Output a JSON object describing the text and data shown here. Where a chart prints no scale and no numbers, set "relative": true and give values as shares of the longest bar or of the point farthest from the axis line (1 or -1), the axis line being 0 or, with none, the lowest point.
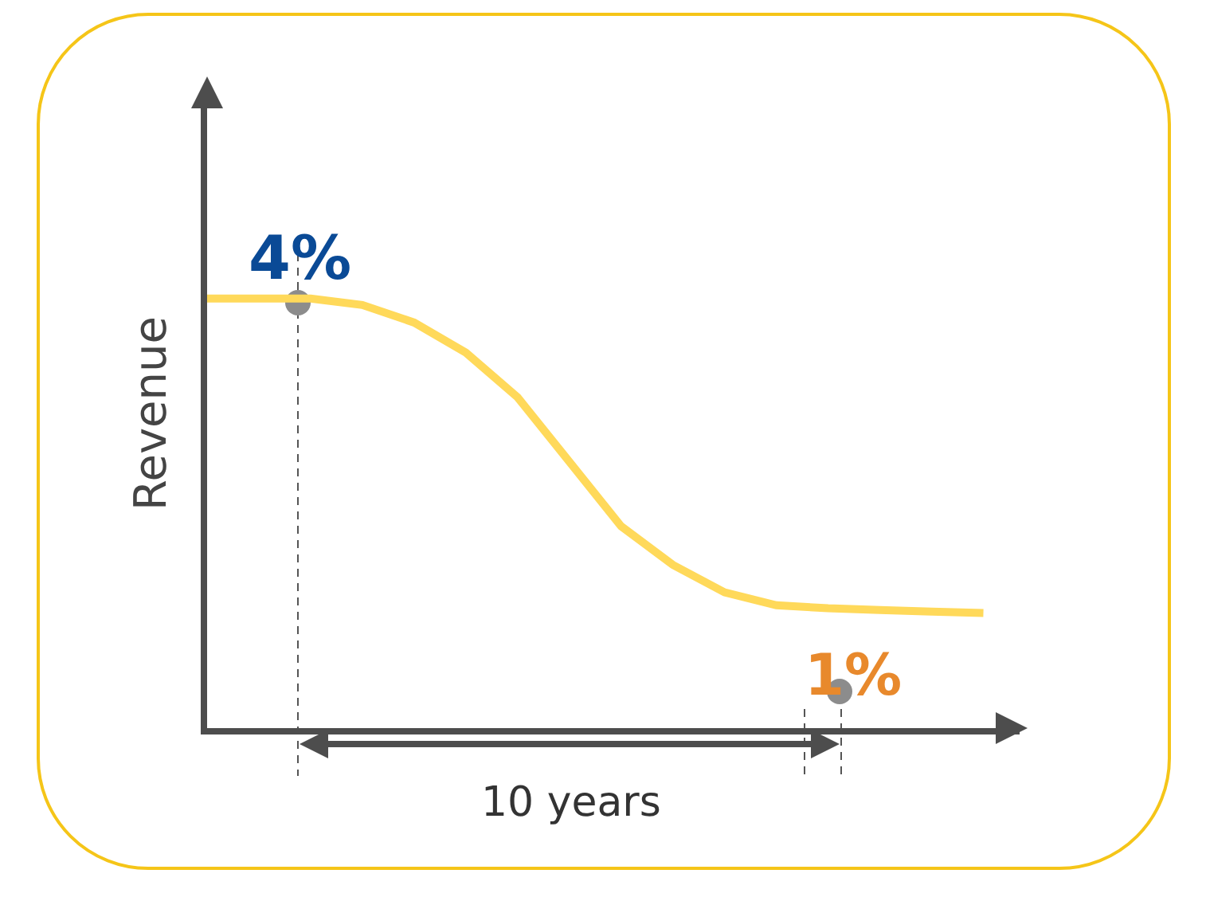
{
  "chart_data": {
    "type": "line",
    "relative": true,
    "ylabel": "Revenue",
    "tick_labels": false,
    "categories": [
      null,
      null,
      null,
      null,
      null,
      null,
      null,
      null,
      null,
      null,
      null,
      null,
      null,
      null,
      null,
      null
    ],
    "series": [
      {
        "color": "#ffd95a",
        "line_style": "solid",
        "values": [
          1,
          1,
          1,
          0.985,
          0.944,
          0.874,
          0.77,
          0.62,
          0.47,
          0.38,
          0.316,
          0.286,
          0.279,
          0.275,
          0.271,
          0.268
        ]
      }
    ],
    "annotations": [
      "4%",
      "1%",
      "10 years"
    ]
  }
}
